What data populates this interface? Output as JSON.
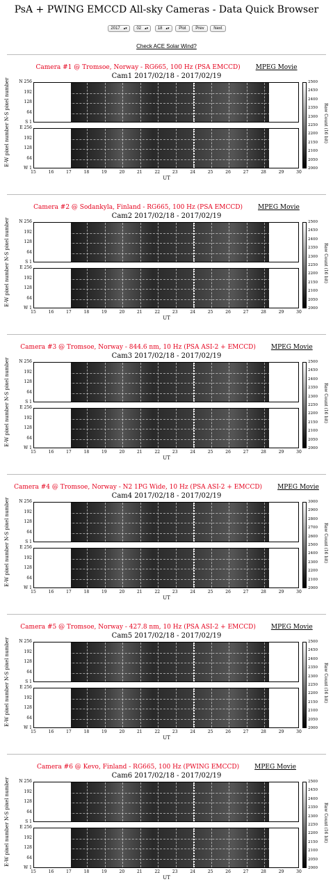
{
  "page_title": "PsA + PWING EMCCD All-sky Cameras - Data Quick Browser",
  "controls": {
    "year": "2017",
    "month": "02",
    "day": "18",
    "plot_label": "Plot",
    "prev_label": "Prev",
    "next_label": "Next"
  },
  "ace_link": "Check ACE Solar Wind?",
  "mpeg_label": "MPEG Movie",
  "x_axis": {
    "label": "UT",
    "ticks": [
      "15",
      "16",
      "17",
      "18",
      "19",
      "20",
      "21",
      "22",
      "23",
      "24",
      "25",
      "26",
      "27",
      "28",
      "29",
      "30"
    ]
  },
  "y_axis": {
    "ns_label": "N-S pixel number",
    "ew_label": "E-W pixel number",
    "ns_ticks": [
      "N 256",
      "192",
      "128",
      "64",
      "S  1"
    ],
    "ew_ticks": [
      "E 256",
      "192",
      "128",
      "64",
      "W  1"
    ]
  },
  "colorbar_label": "Raw Count (16 bit)",
  "cameras": [
    {
      "title": "Camera #1 @ Tromsoe, Norway - RG665, 100 Hz (PSA EMCCD)",
      "subtitle": "Cam1  2017/02/18 - 2017/02/19",
      "cbar_ticks": [
        "2500",
        "2450",
        "2400",
        "2350",
        "2300",
        "2250",
        "2200",
        "2150",
        "2100",
        "2050",
        "2000"
      ]
    },
    {
      "title": "Camera #2 @ Sodankyla, Finland - RG665, 100 Hz (PSA EMCCD)",
      "subtitle": "Cam2  2017/02/18 - 2017/02/19",
      "cbar_ticks": [
        "2500",
        "2450",
        "2400",
        "2350",
        "2300",
        "2250",
        "2200",
        "2150",
        "2100",
        "2050",
        "2000"
      ]
    },
    {
      "title": "Camera #3 @ Tromsoe, Norway - 844.6 nm, 10 Hz (PSA ASI-2 + EMCCD)",
      "subtitle": "Cam3  2017/02/18 - 2017/02/19",
      "cbar_ticks": [
        "2500",
        "2450",
        "2400",
        "2350",
        "2300",
        "2250",
        "2200",
        "2150",
        "2100",
        "2050",
        "2000"
      ]
    },
    {
      "title": "Camera #4 @ Tromsoe, Norway - N2 1PG Wide, 10 Hz (PSA ASI-2 + EMCCD)",
      "subtitle": "Cam4  2017/02/18 - 2017/02/19",
      "cbar_ticks": [
        "3000",
        "2900",
        "2800",
        "2700",
        "2600",
        "2500",
        "2400",
        "2300",
        "2200",
        "2100",
        "2000"
      ]
    },
    {
      "title": "Camera #5 @ Tromsoe, Norway - 427.8 nm, 10 Hz (PSA ASI-2 + EMCCD)",
      "subtitle": "Cam5  2017/02/18 - 2017/02/19",
      "cbar_ticks": [
        "2500",
        "2450",
        "2400",
        "2350",
        "2300",
        "2250",
        "2200",
        "2150",
        "2100",
        "2050",
        "2000"
      ]
    },
    {
      "title": "Camera #6 @ Kevo, Finland - RG665, 100 Hz (PWING EMCCD)",
      "subtitle": "Cam6  2017/02/18 - 2017/02/19",
      "cbar_ticks": [
        "2500",
        "2450",
        "2400",
        "2350",
        "2300",
        "2250",
        "2200",
        "2150",
        "2100",
        "2050",
        "2000"
      ]
    }
  ]
}
